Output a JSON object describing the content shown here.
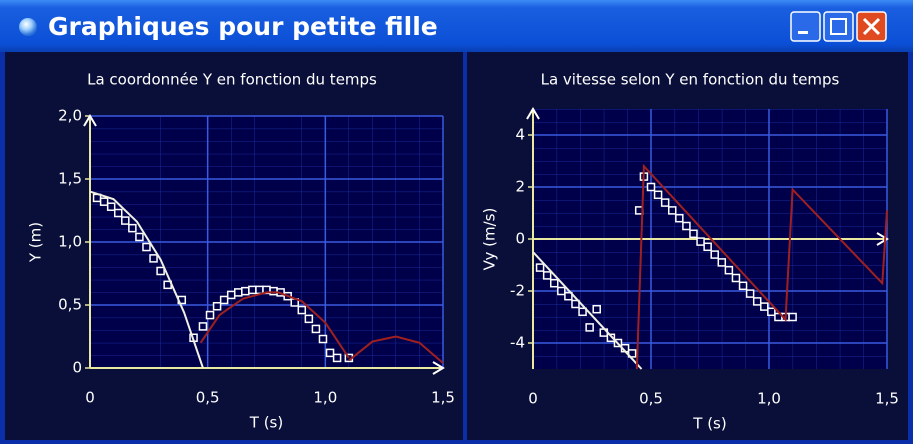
{
  "window": {
    "title": "Graphiques pour petite fille"
  },
  "chart_data": [
    {
      "type": "line",
      "title": "La coordonnée Y en fonction du temps",
      "x_label": "T (s)",
      "y_label": "Y (m)",
      "xlim": [
        0,
        1.5
      ],
      "ylim": [
        0,
        2.0
      ],
      "xticks": [
        0,
        {
          "value": 0.5,
          "label": "0,5"
        },
        {
          "value": 1.0,
          "label": "1,0"
        },
        {
          "value": 1.5,
          "label": "1,5"
        }
      ],
      "yticks": [
        0,
        {
          "value": 0.5,
          "label": "0,5"
        },
        {
          "value": 1.0,
          "label": "1,0"
        },
        {
          "value": 1.5,
          "label": "1,5"
        },
        {
          "value": 2.0,
          "label": "2,0"
        }
      ],
      "grid": true,
      "series": [
        {
          "type": "scatter",
          "color": "#ffffff",
          "x": [
            0.03,
            0.06,
            0.09,
            0.12,
            0.15,
            0.18,
            0.21,
            0.24,
            0.27,
            0.3,
            0.33,
            0.39,
            0.44,
            0.48,
            0.51,
            0.54,
            0.57,
            0.6,
            0.63,
            0.66,
            0.69,
            0.72,
            0.75,
            0.78,
            0.81,
            0.84,
            0.87,
            0.9,
            0.93,
            0.96,
            0.99,
            1.02,
            1.05,
            1.1
          ],
          "values": [
            1.35,
            1.32,
            1.28,
            1.23,
            1.17,
            1.11,
            1.04,
            0.96,
            0.87,
            0.77,
            0.66,
            0.54,
            0.24,
            0.33,
            0.42,
            0.49,
            0.54,
            0.58,
            0.6,
            0.61,
            0.62,
            0.62,
            0.62,
            0.61,
            0.6,
            0.57,
            0.52,
            0.46,
            0.39,
            0.31,
            0.23,
            0.12,
            0.08,
            0.08
          ]
        },
        {
          "type": "line",
          "color": "#f0f0e0",
          "x": [
            0,
            0.1,
            0.2,
            0.3,
            0.4,
            0.48
          ],
          "values": [
            1.4,
            1.34,
            1.16,
            0.86,
            0.44,
            0
          ]
        },
        {
          "type": "line",
          "color": "#a02020",
          "x": [
            0.47,
            0.55,
            0.65,
            0.75,
            0.8,
            0.9,
            1.0,
            1.1
          ],
          "values": [
            0.2,
            0.42,
            0.55,
            0.6,
            0.6,
            0.53,
            0.36,
            0.08
          ]
        },
        {
          "type": "line",
          "color": "#a02020",
          "x": [
            1.1,
            1.2,
            1.3,
            1.4,
            1.5
          ],
          "values": [
            0.06,
            0.21,
            0.25,
            0.2,
            0.04
          ]
        }
      ]
    },
    {
      "type": "line",
      "title": "La vitesse selon Y en fonction du temps",
      "x_label": "T (s)",
      "y_label": "Vy (m/s)",
      "xlim": [
        0,
        1.5
      ],
      "ylim": [
        -5,
        5
      ],
      "xticks": [
        0,
        {
          "value": 0.5,
          "label": "0,5"
        },
        {
          "value": 1.0,
          "label": "1,0"
        },
        {
          "value": 1.5,
          "label": "1,5"
        }
      ],
      "yticks": [
        -4,
        -2,
        0,
        2,
        4
      ],
      "grid": true,
      "series": [
        {
          "type": "scatter",
          "color": "#ffffff",
          "x": [
            0.03,
            0.06,
            0.09,
            0.12,
            0.15,
            0.18,
            0.21,
            0.24,
            0.27,
            0.3,
            0.33,
            0.36,
            0.39,
            0.42,
            0.45,
            0.47,
            0.5,
            0.53,
            0.56,
            0.59,
            0.62,
            0.65,
            0.68,
            0.71,
            0.74,
            0.77,
            0.8,
            0.83,
            0.86,
            0.89,
            0.92,
            0.95,
            0.98,
            1.01,
            1.04,
            1.07,
            1.1
          ],
          "values": [
            -1.1,
            -1.4,
            -1.7,
            -2.0,
            -2.2,
            -2.5,
            -2.8,
            -3.4,
            -2.7,
            -3.6,
            -3.8,
            -4.0,
            -4.2,
            -4.4,
            1.1,
            2.4,
            2.0,
            1.7,
            1.4,
            1.1,
            0.8,
            0.5,
            0.2,
            -0.1,
            -0.3,
            -0.6,
            -0.9,
            -1.2,
            -1.5,
            -1.8,
            -2.1,
            -2.4,
            -2.6,
            -2.8,
            -3.0,
            -3.0,
            -3.0
          ]
        },
        {
          "type": "line",
          "color": "#f0f0e0",
          "x": [
            0,
            0.46
          ],
          "values": [
            -0.5,
            -5
          ]
        },
        {
          "type": "line",
          "color": "#a02020",
          "x": [
            0.44,
            0.47,
            1.07,
            1.1,
            1.48,
            1.5
          ],
          "values": [
            -5,
            2.8,
            -3.1,
            1.9,
            -1.7,
            1.1
          ]
        }
      ]
    }
  ]
}
